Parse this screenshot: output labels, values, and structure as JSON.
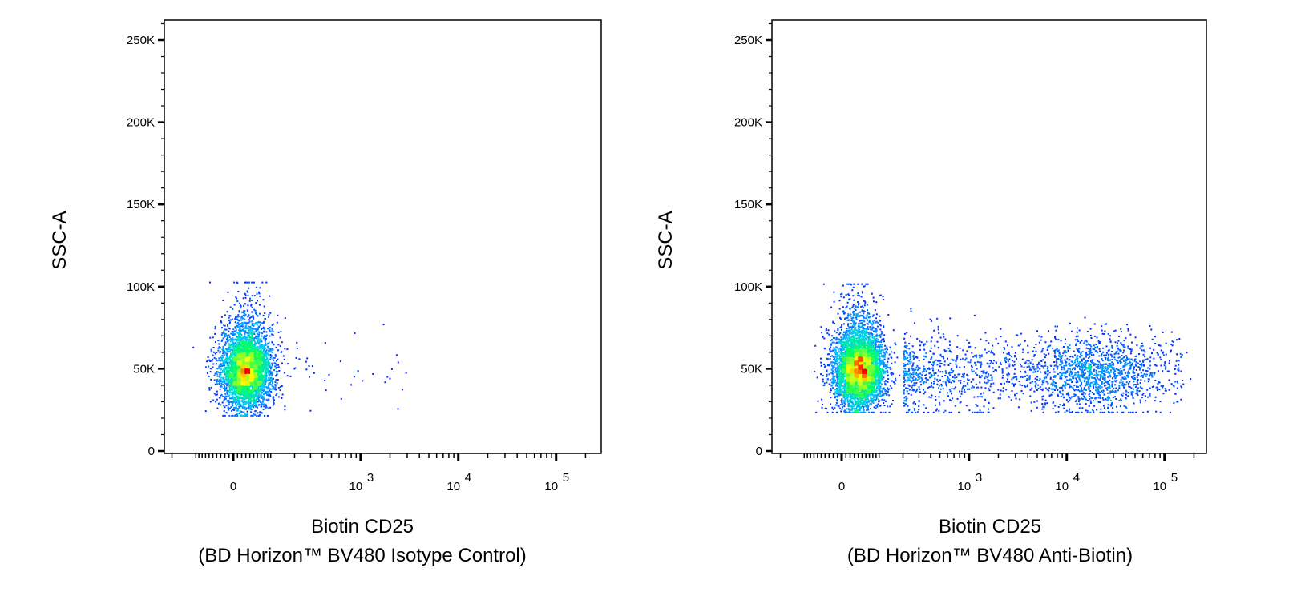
{
  "chart_data": [
    {
      "type": "scatter",
      "style": "pseudocolor density dot plot",
      "ylabel": "SSC-A",
      "xlabel": "Biotin CD25",
      "xlabel_sub": "(BD Horizon™ BV480 Isotype Control)",
      "x_scale": "biexponential",
      "xlim": [
        -250,
        290000
      ],
      "ylim": [
        -2000,
        262000
      ],
      "x_ticks": [
        {
          "value": 0,
          "base": "0",
          "exp": ""
        },
        {
          "value": 1000,
          "base": "10",
          "exp": "3"
        },
        {
          "value": 10000,
          "base": "10",
          "exp": "4"
        },
        {
          "value": 100000,
          "base": "10",
          "exp": "5"
        }
      ],
      "y_ticks": [
        {
          "value": 0,
          "label": "0"
        },
        {
          "value": 50000,
          "label": "50K"
        },
        {
          "value": 100000,
          "label": "100K"
        },
        {
          "value": 150000,
          "label": "150K"
        },
        {
          "value": 200000,
          "label": "200K"
        },
        {
          "value": 250000,
          "label": "250K"
        }
      ],
      "populations": [
        {
          "x_center": 30,
          "y_center": 48000,
          "y_range": [
            22000,
            103000
          ],
          "events": 4200
        },
        {
          "x_range": [
            150,
            3000
          ],
          "y_range": [
            25000,
            80000
          ],
          "events": 40
        }
      ],
      "grid": false,
      "colormap": [
        "#0000ff",
        "#00c8ff",
        "#00ff60",
        "#ffff00",
        "#ff0000"
      ]
    },
    {
      "type": "scatter",
      "style": "pseudocolor density dot plot",
      "ylabel": "SSC-A",
      "xlabel": "Biotin CD25",
      "xlabel_sub": "(BD Horizon™ BV480 Anti-Biotin)",
      "x_scale": "biexponential",
      "xlim": [
        -250,
        290000
      ],
      "ylim": [
        -2000,
        262000
      ],
      "x_ticks": [
        {
          "value": 0,
          "base": "0",
          "exp": ""
        },
        {
          "value": 1000,
          "base": "10",
          "exp": "3"
        },
        {
          "value": 10000,
          "base": "10",
          "exp": "4"
        },
        {
          "value": 100000,
          "base": "10",
          "exp": "5"
        }
      ],
      "y_ticks": [
        {
          "value": 0,
          "label": "0"
        },
        {
          "value": 50000,
          "label": "50K"
        },
        {
          "value": 100000,
          "label": "100K"
        },
        {
          "value": 150000,
          "label": "150K"
        },
        {
          "value": 200000,
          "label": "200K"
        },
        {
          "value": 250000,
          "label": "250K"
        }
      ],
      "populations": [
        {
          "x_center": 40,
          "y_center": 48000,
          "y_range": [
            24000,
            102000
          ],
          "events": 4500
        },
        {
          "x_range": [
            200,
            150000
          ],
          "y_center": 48000,
          "y_range": [
            24000,
            100000
          ],
          "events": 2200
        }
      ],
      "grid": false,
      "colormap": [
        "#0000ff",
        "#00c8ff",
        "#00ff60",
        "#ffff00",
        "#ff0000"
      ]
    }
  ]
}
